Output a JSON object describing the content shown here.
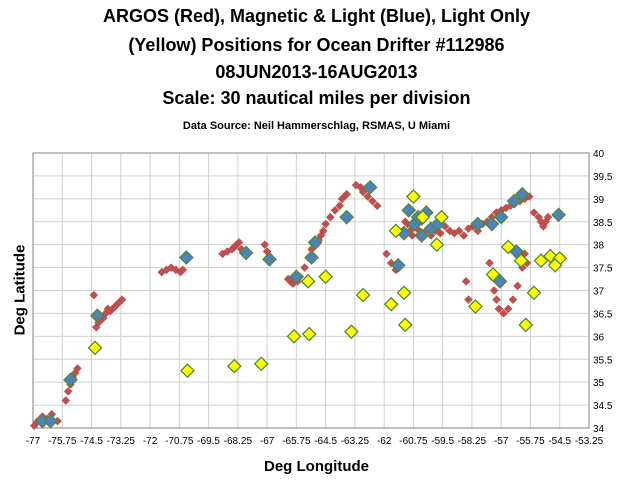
{
  "chart_data": {
    "type": "scatter",
    "title_lines": [
      "ARGOS (Red), Magnetic & Light (Blue), Light Only",
      "(Yellow) Positions for Ocean Drifter #112986",
      "08JUN2013-16AUG2013",
      "Scale:  30 nautical miles per division"
    ],
    "subtitle": "Data Source: Neil Hammerschlag,  RSMAS, U Miami",
    "xlabel": "Deg Longitude",
    "ylabel": "Deg Latitude",
    "xlim": [
      -77,
      -53.25
    ],
    "ylim": [
      34,
      40
    ],
    "x_ticks": [
      "-77",
      "-75.75",
      "-74.5",
      "-73.25",
      "-72",
      "-70.75",
      "-69.5",
      "-68.25",
      "-67",
      "-65.75",
      "-64.5",
      "-63.25",
      "-62",
      "-60.75",
      "-59.5",
      "-58.25",
      "-57",
      "-55.75",
      "-54.5",
      "-53.25"
    ],
    "y_ticks": [
      "34",
      "34.5",
      "35",
      "35.5",
      "36",
      "36.5",
      "37",
      "37.5",
      "38",
      "38.5",
      "39",
      "39.5",
      "40"
    ],
    "grid": true,
    "series": [
      {
        "name": "ARGOS",
        "color": "#c0504d",
        "marker": "diamond",
        "points": [
          [
            -76.95,
            34.05
          ],
          [
            -76.8,
            34.15
          ],
          [
            -76.6,
            34.25
          ],
          [
            -76.4,
            34.2
          ],
          [
            -76.2,
            34.3
          ],
          [
            -75.95,
            34.15
          ],
          [
            -75.6,
            34.6
          ],
          [
            -75.5,
            34.8
          ],
          [
            -75.4,
            34.95
          ],
          [
            -75.3,
            35.1
          ],
          [
            -75.2,
            35.2
          ],
          [
            -75.1,
            35.3
          ],
          [
            -74.4,
            36.9
          ],
          [
            -74.3,
            36.2
          ],
          [
            -74.2,
            36.3
          ],
          [
            -74.1,
            36.35
          ],
          [
            -74.0,
            36.4
          ],
          [
            -73.9,
            36.5
          ],
          [
            -73.8,
            36.6
          ],
          [
            -73.7,
            36.55
          ],
          [
            -73.6,
            36.6
          ],
          [
            -73.5,
            36.65
          ],
          [
            -73.4,
            36.7
          ],
          [
            -73.3,
            36.75
          ],
          [
            -73.2,
            36.8
          ],
          [
            -71.5,
            37.4
          ],
          [
            -71.3,
            37.45
          ],
          [
            -71.1,
            37.5
          ],
          [
            -70.9,
            37.45
          ],
          [
            -70.7,
            37.4
          ],
          [
            -70.6,
            37.45
          ],
          [
            -68.9,
            37.8
          ],
          [
            -68.7,
            37.85
          ],
          [
            -68.5,
            37.9
          ],
          [
            -68.4,
            37.95
          ],
          [
            -68.3,
            38.0
          ],
          [
            -68.2,
            38.05
          ],
          [
            -68.1,
            37.9
          ],
          [
            -67.1,
            38.0
          ],
          [
            -67.0,
            37.85
          ],
          [
            -66.9,
            37.75
          ],
          [
            -66.1,
            37.25
          ],
          [
            -66.0,
            37.2
          ],
          [
            -65.9,
            37.15
          ],
          [
            -65.7,
            37.2
          ],
          [
            -65.6,
            37.3
          ],
          [
            -65.4,
            37.5
          ],
          [
            -65.2,
            37.7
          ],
          [
            -65.1,
            37.9
          ],
          [
            -64.9,
            38.0
          ],
          [
            -64.8,
            38.1
          ],
          [
            -64.7,
            38.2
          ],
          [
            -64.6,
            38.3
          ],
          [
            -64.5,
            38.45
          ],
          [
            -64.3,
            38.6
          ],
          [
            -64.1,
            38.75
          ],
          [
            -63.9,
            38.85
          ],
          [
            -63.8,
            39.0
          ],
          [
            -63.7,
            39.05
          ],
          [
            -63.6,
            39.1
          ],
          [
            -63.2,
            39.3
          ],
          [
            -63.0,
            39.25
          ],
          [
            -62.9,
            39.15
          ],
          [
            -62.7,
            39.05
          ],
          [
            -62.5,
            38.95
          ],
          [
            -62.3,
            38.85
          ],
          [
            -61.9,
            37.8
          ],
          [
            -61.7,
            37.6
          ],
          [
            -61.5,
            37.45
          ],
          [
            -61.2,
            38.3
          ],
          [
            -61.1,
            38.5
          ],
          [
            -61.0,
            38.45
          ],
          [
            -60.9,
            38.3
          ],
          [
            -60.8,
            38.2
          ],
          [
            -60.6,
            38.35
          ],
          [
            -60.4,
            38.5
          ],
          [
            -60.2,
            38.3
          ],
          [
            -60.0,
            38.2
          ],
          [
            -59.8,
            38.3
          ],
          [
            -59.6,
            38.25
          ],
          [
            -59.4,
            38.4
          ],
          [
            -59.2,
            38.3
          ],
          [
            -59.0,
            38.25
          ],
          [
            -58.8,
            38.3
          ],
          [
            -58.6,
            38.2
          ],
          [
            -58.4,
            38.35
          ],
          [
            -58.2,
            38.4
          ],
          [
            -58.0,
            38.3
          ],
          [
            -57.8,
            38.45
          ],
          [
            -57.6,
            38.5
          ],
          [
            -57.4,
            38.6
          ],
          [
            -57.2,
            38.7
          ],
          [
            -57.0,
            38.75
          ],
          [
            -56.8,
            38.8
          ],
          [
            -56.6,
            38.85
          ],
          [
            -56.4,
            38.9
          ],
          [
            -56.2,
            38.95
          ],
          [
            -56.0,
            39.0
          ],
          [
            -55.8,
            39.05
          ],
          [
            -55.6,
            38.7
          ],
          [
            -55.4,
            38.6
          ],
          [
            -55.3,
            38.5
          ],
          [
            -55.2,
            38.4
          ],
          [
            -55.1,
            38.5
          ],
          [
            -55.0,
            38.6
          ],
          [
            -57.5,
            37.6
          ],
          [
            -57.4,
            37.3
          ],
          [
            -57.3,
            37.0
          ],
          [
            -57.2,
            36.8
          ],
          [
            -57.1,
            36.6
          ],
          [
            -56.9,
            36.5
          ],
          [
            -56.7,
            36.6
          ],
          [
            -56.5,
            36.8
          ],
          [
            -56.3,
            37.1
          ],
          [
            -56.1,
            37.5
          ],
          [
            -56.0,
            37.8
          ],
          [
            -55.9,
            37.6
          ],
          [
            -58.5,
            37.2
          ],
          [
            -58.4,
            36.8
          ]
        ]
      },
      {
        "name": "Magnetic & Light",
        "color": "#4f81bd",
        "marker": "diamond",
        "points": [
          [
            -76.6,
            34.15
          ],
          [
            -76.25,
            34.15
          ],
          [
            -75.4,
            35.05
          ],
          [
            -74.25,
            36.45
          ],
          [
            -70.45,
            37.72
          ],
          [
            -67.9,
            37.82
          ],
          [
            -66.9,
            37.68
          ],
          [
            -65.75,
            37.3
          ],
          [
            -65.1,
            37.72
          ],
          [
            -64.95,
            38.05
          ],
          [
            -63.6,
            38.6
          ],
          [
            -62.6,
            39.25
          ],
          [
            -61.4,
            37.55
          ],
          [
            -61.15,
            38.25
          ],
          [
            -60.95,
            38.75
          ],
          [
            -60.7,
            38.45
          ],
          [
            -60.55,
            38.6
          ],
          [
            -60.4,
            38.2
          ],
          [
            -60.2,
            38.7
          ],
          [
            -60.0,
            38.35
          ],
          [
            -59.7,
            38.45
          ],
          [
            -58.0,
            38.45
          ],
          [
            -57.4,
            38.45
          ],
          [
            -57.0,
            38.6
          ],
          [
            -56.45,
            38.95
          ],
          [
            -56.1,
            39.1
          ],
          [
            -56.35,
            37.85
          ],
          [
            -57.05,
            37.2
          ],
          [
            -54.55,
            38.65
          ]
        ]
      },
      {
        "name": "Light Only",
        "color": "#ffff00",
        "marker": "diamond",
        "points": [
          [
            -74.35,
            35.75
          ],
          [
            -70.4,
            35.25
          ],
          [
            -68.4,
            35.35
          ],
          [
            -67.25,
            35.4
          ],
          [
            -65.85,
            36.0
          ],
          [
            -65.2,
            36.05
          ],
          [
            -65.25,
            37.2
          ],
          [
            -64.5,
            37.3
          ],
          [
            -63.4,
            36.1
          ],
          [
            -62.9,
            36.9
          ],
          [
            -61.7,
            36.7
          ],
          [
            -61.5,
            38.3
          ],
          [
            -61.15,
            36.95
          ],
          [
            -61.1,
            36.25
          ],
          [
            -60.75,
            39.05
          ],
          [
            -60.35,
            38.6
          ],
          [
            -59.75,
            38.0
          ],
          [
            -59.55,
            38.6
          ],
          [
            -58.1,
            36.65
          ],
          [
            -57.35,
            37.35
          ],
          [
            -56.7,
            37.95
          ],
          [
            -56.15,
            37.65
          ],
          [
            -55.95,
            36.25
          ],
          [
            -55.6,
            36.95
          ],
          [
            -55.3,
            37.65
          ],
          [
            -54.9,
            37.75
          ],
          [
            -54.5,
            37.7
          ],
          [
            -54.7,
            37.55
          ]
        ]
      }
    ]
  }
}
